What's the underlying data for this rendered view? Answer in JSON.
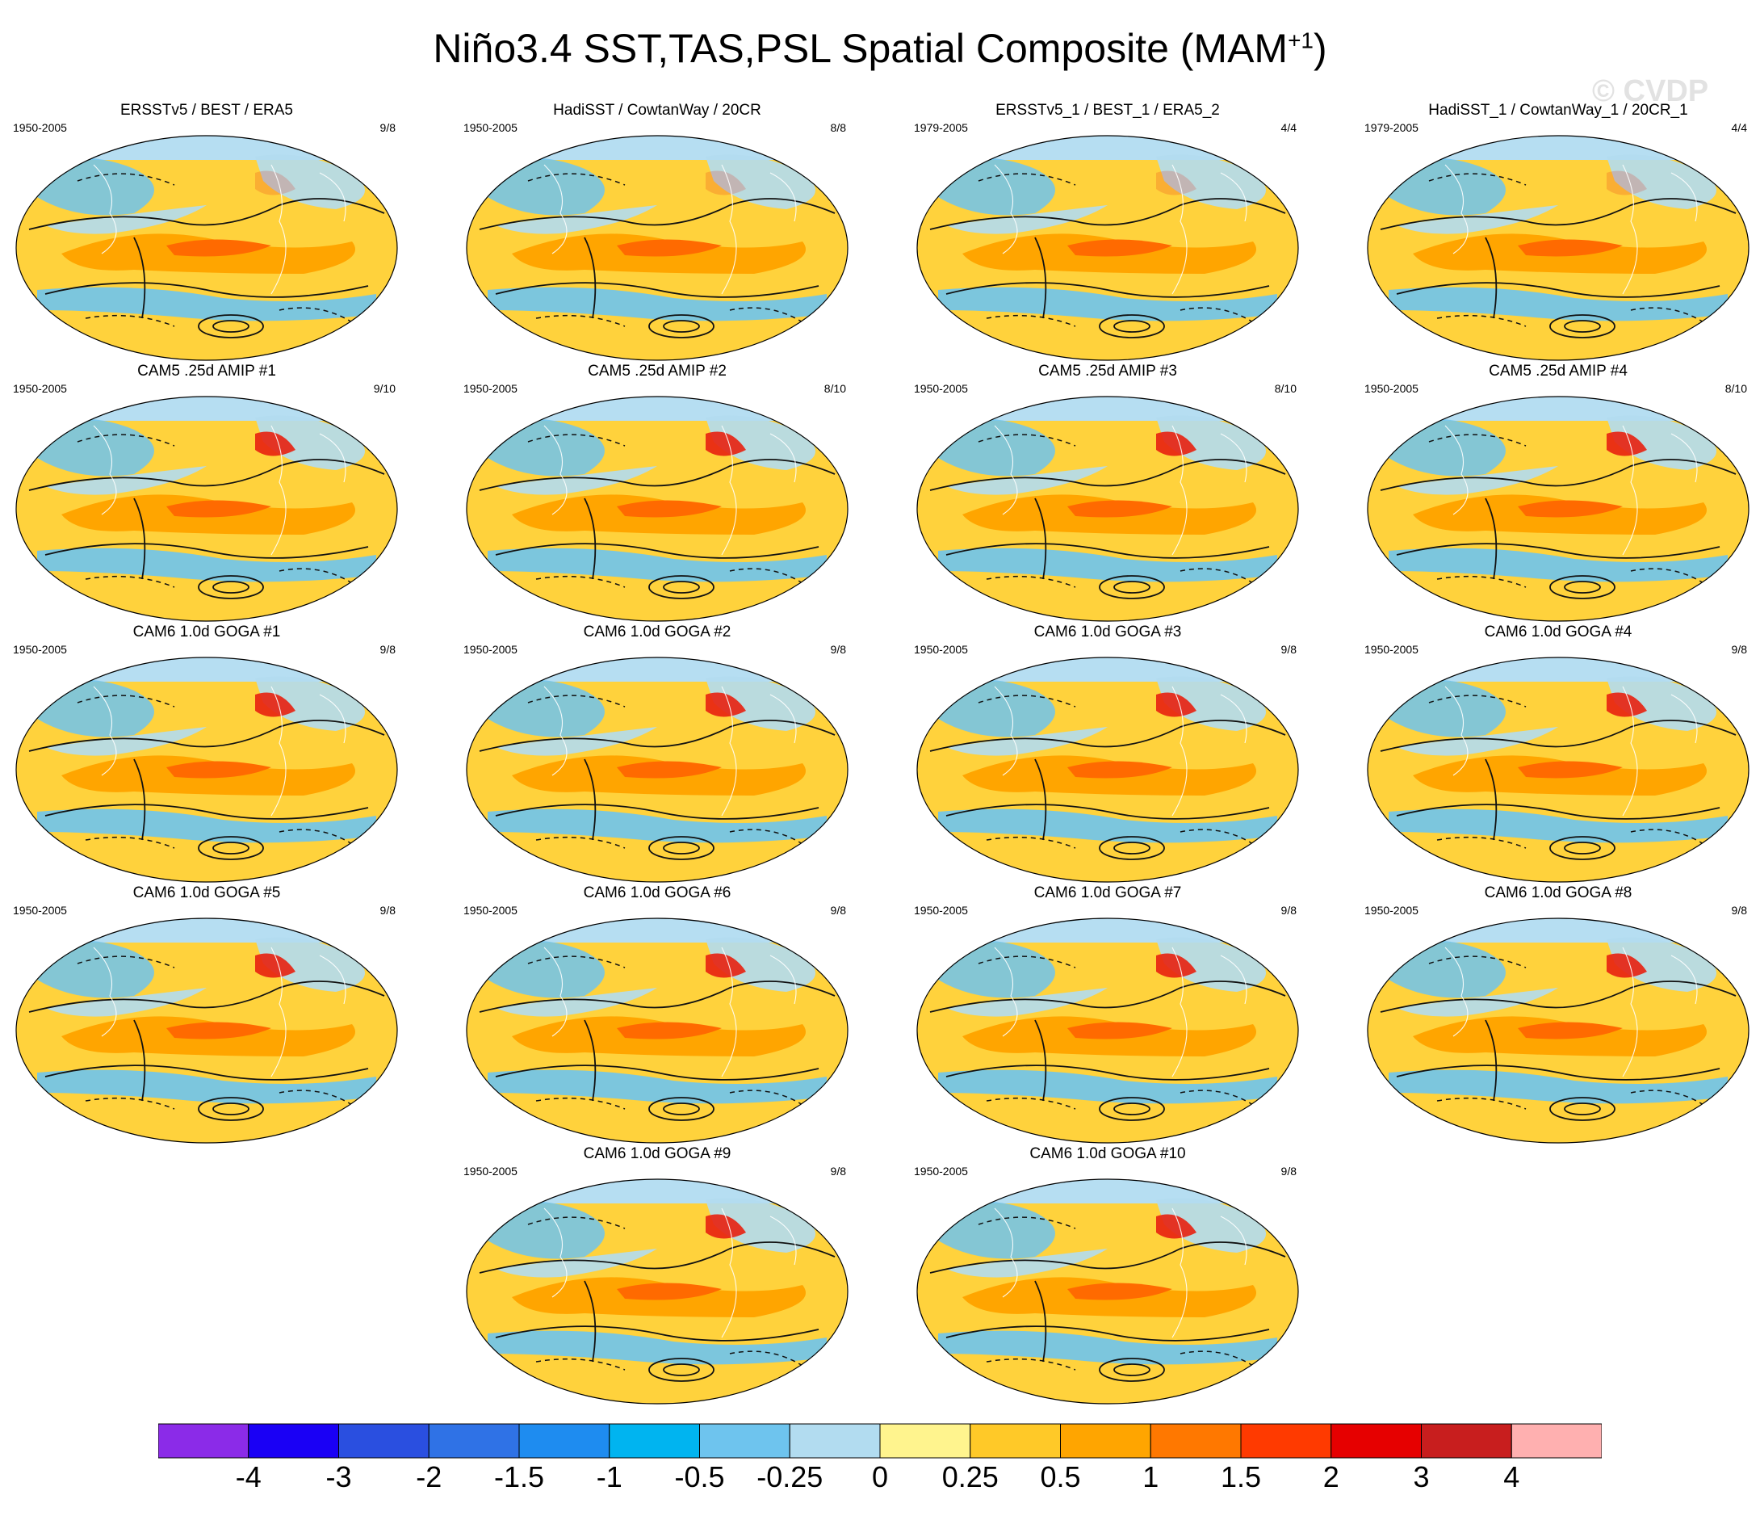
{
  "title": {
    "main": "Niño3.4 SST,TAS,PSL Spatial Composite (MAM",
    "sup": "+1",
    "close": ")"
  },
  "watermark": "© CVDP",
  "panels": [
    {
      "title": "ERSSTv5 / BEST / ERA5",
      "period": "1950-2005",
      "ratio": "9/8"
    },
    {
      "title": "HadiSST / CowtanWay / 20CR",
      "period": "1950-2005",
      "ratio": "8/8"
    },
    {
      "title": "ERSSTv5_1 / BEST_1 / ERA5_2",
      "period": "1979-2005",
      "ratio": "4/4"
    },
    {
      "title": "HadiSST_1 / CowtanWay_1 / 20CR_1",
      "period": "1979-2005",
      "ratio": "4/4"
    },
    {
      "title": "CAM5 .25d AMIP #1",
      "period": "1950-2005",
      "ratio": "9/10"
    },
    {
      "title": "CAM5 .25d AMIP #2",
      "period": "1950-2005",
      "ratio": "8/10"
    },
    {
      "title": "CAM5 .25d AMIP #3",
      "period": "1950-2005",
      "ratio": "8/10"
    },
    {
      "title": "CAM5 .25d AMIP #4",
      "period": "1950-2005",
      "ratio": "8/10"
    },
    {
      "title": "CAM6 1.0d GOGA #1",
      "period": "1950-2005",
      "ratio": "9/8"
    },
    {
      "title": "CAM6 1.0d GOGA #2",
      "period": "1950-2005",
      "ratio": "9/8"
    },
    {
      "title": "CAM6 1.0d GOGA #3",
      "period": "1950-2005",
      "ratio": "9/8"
    },
    {
      "title": "CAM6 1.0d GOGA #4",
      "period": "1950-2005",
      "ratio": "9/8"
    },
    {
      "title": "CAM6 1.0d GOGA #5",
      "period": "1950-2005",
      "ratio": "9/8"
    },
    {
      "title": "CAM6 1.0d GOGA #6",
      "period": "1950-2005",
      "ratio": "9/8"
    },
    {
      "title": "CAM6 1.0d GOGA #7",
      "period": "1950-2005",
      "ratio": "9/8"
    },
    {
      "title": "CAM6 1.0d GOGA #8",
      "period": "1950-2005",
      "ratio": "9/8"
    },
    {
      "title": "CAM6 1.0d GOGA #9",
      "period": "1950-2005",
      "ratio": "9/8"
    },
    {
      "title": "CAM6 1.0d GOGA #10",
      "period": "1950-2005",
      "ratio": "9/8"
    }
  ],
  "colorbar": {
    "colors": [
      "#8b2be8",
      "#1a00f5",
      "#2a4fe0",
      "#2f72e6",
      "#1e8cf0",
      "#00b4f0",
      "#6ec4ee",
      "#b2dcf0",
      "#fff48e",
      "#ffc928",
      "#ffa500",
      "#ff7800",
      "#ff3a00",
      "#e60000",
      "#c81e1e",
      "#ffb0b0"
    ],
    "labels": [
      "-4",
      "-3",
      "-2",
      "-1.5",
      "-1",
      "-0.5",
      "-0.25",
      "0",
      "0.25",
      "0.5",
      "1",
      "1.5",
      "2",
      "3",
      "4"
    ]
  }
}
